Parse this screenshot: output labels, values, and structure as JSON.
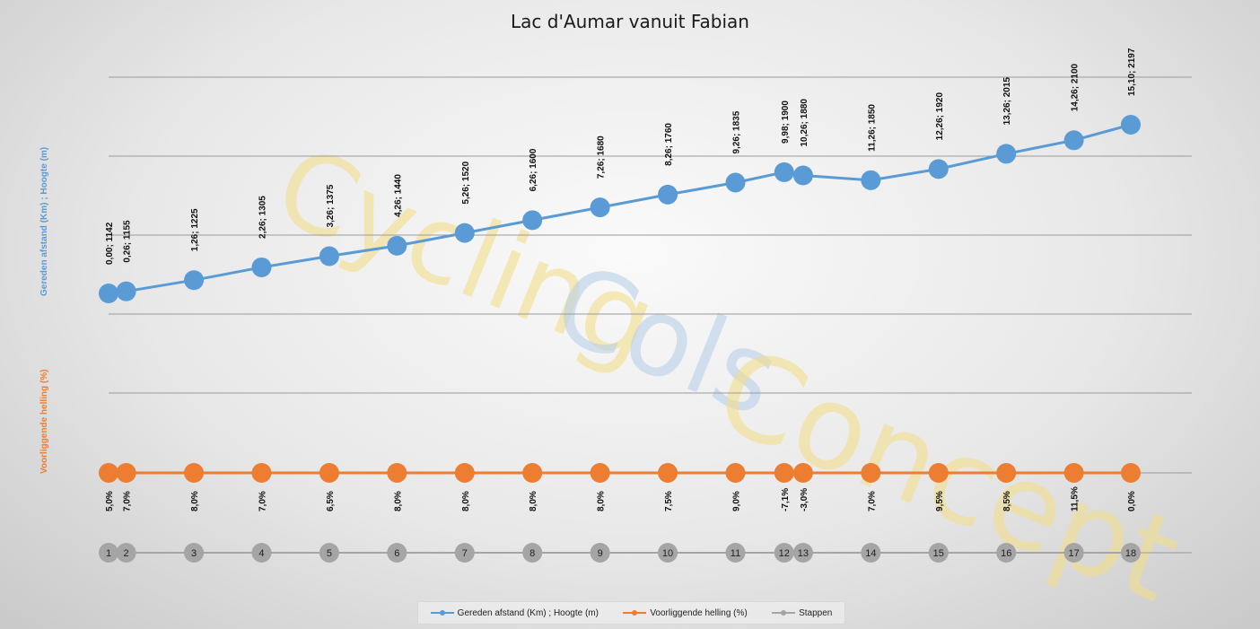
{
  "chart_data": {
    "type": "line",
    "title": "Lac d'Aumar vanuit Fabian",
    "y_labels": {
      "blue": "Gereden afstand (Km) ;  Hoogte (m)",
      "orange": "Voorliggende helling (%)"
    },
    "watermark": [
      "Cycling",
      "Cols",
      "Concept"
    ],
    "series": [
      {
        "name": "Gereden afstand (Km) ; Hoogte (m)",
        "color": "#5b9bd5",
        "distance_km": [
          0.0,
          0.26,
          1.26,
          2.26,
          3.26,
          4.26,
          5.26,
          6.26,
          7.26,
          8.26,
          9.26,
          9.98,
          10.26,
          11.26,
          12.26,
          13.26,
          14.26,
          15.1
        ],
        "elevation_m": [
          1142,
          1155,
          1225,
          1305,
          1375,
          1440,
          1520,
          1600,
          1680,
          1760,
          1835,
          1900,
          1880,
          1850,
          1920,
          2015,
          2100,
          2197
        ],
        "labels": [
          "0,00; 1142",
          "0,26; 1155",
          "1,26; 1225",
          "2,26; 1305",
          "3,26; 1375",
          "4,26; 1440",
          "5,26; 1520",
          "6,26; 1600",
          "7,26; 1680",
          "8,26; 1760",
          "9,26; 1835",
          "9,98; 1900",
          "10,26; 1880",
          "11,26; 1850",
          "12,26; 1920",
          "13,26; 2015",
          "14,26; 2100",
          "15,10; 2197"
        ]
      },
      {
        "name": "Voorliggende helling (%)",
        "color": "#ed7d31",
        "values": [
          5.0,
          7.0,
          8.0,
          7.0,
          6.5,
          8.0,
          8.0,
          8.0,
          8.0,
          7.5,
          9.0,
          -7.1,
          -3.0,
          7.0,
          9.5,
          8.5,
          11.5,
          0.0
        ],
        "labels": [
          "5,0%",
          "7,0%",
          "8,0%",
          "7,0%",
          "6,5%",
          "8,0%",
          "8,0%",
          "8,0%",
          "8,0%",
          "7,5%",
          "9,0%",
          "-7,1%",
          "-3,0%",
          "7,0%",
          "9,5%",
          "8,5%",
          "11,5%",
          "0,0%"
        ]
      },
      {
        "name": "Stappen",
        "color": "#a5a5a5",
        "values": [
          "1",
          "2",
          "3",
          "4",
          "5",
          "6",
          "7",
          "8",
          "9",
          "10",
          "11",
          "12",
          "13",
          "14",
          "15",
          "16",
          "17",
          "18"
        ]
      }
    ],
    "x_range_km": [
      0,
      15.1
    ],
    "grid": true,
    "legend_position": "bottom"
  }
}
